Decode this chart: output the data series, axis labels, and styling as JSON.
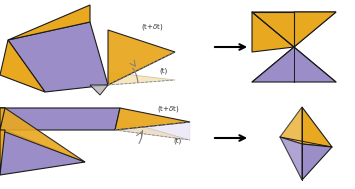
{
  "bg_color": "#ffffff",
  "gold": "#E8A820",
  "purple": "#9B8DC8",
  "gray": "#BBBBBB",
  "light_gold": "#F0D080",
  "light_purple": "#C8BCE8",
  "outline": "#1A1A1A",
  "text_color": "#333333"
}
